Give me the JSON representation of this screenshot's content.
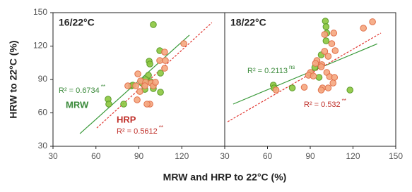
{
  "chart_data": [
    {
      "type": "scatter",
      "title": "16/22°C",
      "ylabel": "HRW to 22°C (%)",
      "xlabel": "MRW and HRP to 22°C (%)",
      "xlim": [
        30,
        150
      ],
      "ylim": [
        30,
        150
      ],
      "xticks": [
        30,
        60,
        90,
        120
      ],
      "yticks": [
        30,
        60,
        90,
        120,
        150
      ],
      "series": [
        {
          "name": "MRW",
          "color": "#8cc63e",
          "edge": "#5a9a2a",
          "x": [
            100.1,
            104.6,
            97.2,
            97.7,
            96.7,
            94.7,
            98.1,
            105.1,
            84.8,
            85.8,
            92.2,
            100.1,
            94.2,
            105.1,
            68.5,
            69.0,
            79.4
          ],
          "values": [
            139.3,
            115.9,
            106.4,
            103.9,
            93.8,
            90.0,
            88.1,
            95.7,
            84.3,
            84.9,
            86.8,
            81.8,
            81.1,
            78.6,
            72.3,
            67.9,
            67.9
          ]
        },
        {
          "name": "HRP",
          "color": "#f5a67e",
          "edge": "#e0704a",
          "x": [
            108.0,
            104.6,
            108.5,
            108.0,
            121.4,
            89.3,
            91.2,
            94.7,
            98.6,
            100.1,
            101.6,
            94.2,
            87.8,
            82.3,
            90.7,
            88.8,
            97.7,
            95.7
          ],
          "values": [
            114.6,
            107.0,
            107.0,
            100.1,
            122.2,
            95.0,
            88.7,
            87.5,
            86.8,
            84.3,
            87.5,
            84.3,
            84.3,
            84.3,
            79.2,
            71.7,
            67.9,
            67.9
          ]
        }
      ],
      "fits": [
        {
          "color": "#3a9a3a",
          "dashed": false,
          "x": [
            48.8,
            125.3
          ],
          "values": [
            41.3,
            129.8
          ],
          "label": "R² = 0.6734",
          "significance": "**"
        },
        {
          "color": "#e0302a",
          "dashed": true,
          "x": [
            60.6,
            141.0
          ],
          "values": [
            46.4,
            141.0
          ],
          "label": "R² = 0.5612",
          "significance": "**"
        }
      ]
    },
    {
      "type": "scatter",
      "title": "18/22°C",
      "xlim": [
        30,
        150
      ],
      "ylim": [
        30,
        150
      ],
      "xticks": [
        30,
        60,
        90,
        120,
        150
      ],
      "series": [
        {
          "color": "#8cc63e",
          "edge": "#5a9a2a",
          "x": [
            100.6,
            101.1,
            101.6,
            101.1,
            97.7,
            93.2,
            90.2,
            64.1,
            64.6,
            77.4,
            117.9,
            96.2
          ],
          "values": [
            142.4,
            137.4,
            131.7,
            124.7,
            112.1,
            100.7,
            95.0,
            84.9,
            82.4,
            82.4,
            80.5,
            91.9
          ]
        },
        {
          "color": "#f5a67e",
          "edge": "#e0704a",
          "x": [
            133.7,
            127.3,
            106.5,
            100.1,
            105.1,
            107.5,
            100.1,
            102.6,
            94.7,
            93.7,
            98.1,
            97.7,
            90.2,
            88.8,
            92.2,
            101.6,
            103.6,
            107.0,
            106.0,
            98.6,
            102.6,
            97.7,
            66.0,
            85.8
          ],
          "values": [
            141.8,
            136.1,
            131.7,
            130.4,
            122.2,
            115.9,
            115.3,
            110.8,
            107.0,
            104.5,
            103.3,
            101.4,
            96.3,
            93.8,
            93.1,
            96.3,
            92.5,
            91.9,
            86.8,
            82.4,
            82.4,
            80.5,
            80.5,
            83.0
          ]
        }
      ],
      "fits": [
        {
          "color": "#3a9a3a",
          "dashed": false,
          "x": [
            35.9,
            137.0
          ],
          "values": [
            67.9,
            122.0
          ],
          "label": "R² = 0.2113",
          "significance": "ns"
        },
        {
          "color": "#e0302a",
          "dashed": true,
          "x": [
            32.0,
            139.6
          ],
          "values": [
            52.0,
            131.7
          ],
          "label": "R² = 0.532",
          "significance": "**"
        }
      ]
    }
  ]
}
